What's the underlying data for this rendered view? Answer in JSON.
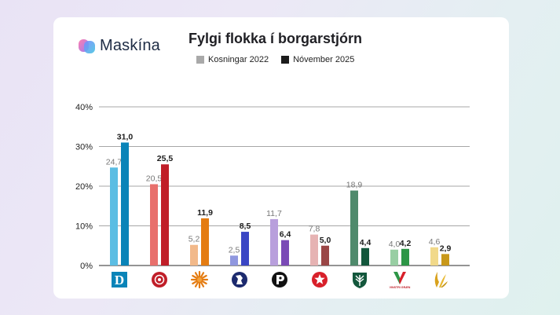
{
  "brand": {
    "name": "Maskína"
  },
  "colors": {
    "y2022": "#a9a9a9",
    "y2025": "#1c1c1c"
  },
  "chart_data": {
    "type": "bar",
    "title": "Fylgi flokka í borgarstjórn",
    "legend": [
      {
        "name": "Kosningar 2022",
        "color": "#a9a9a9"
      },
      {
        "name": "Nóvember 2025",
        "color": "#1c1c1c"
      }
    ],
    "yticks": [
      "0%",
      "10%",
      "20%",
      "30%",
      "40%"
    ],
    "ylim": [
      0,
      40
    ],
    "grid": true,
    "series": [
      {
        "name": "Kosningar 2022",
        "values": [
          24.7,
          20.5,
          5.2,
          2.5,
          11.7,
          7.8,
          18.9,
          4.0,
          4.6
        ],
        "labels": [
          "24,7",
          "20,5",
          "5,2",
          "2,5",
          "11,7",
          "7,8",
          "18,9",
          "4,0",
          "4,6"
        ]
      },
      {
        "name": "Nóvember 2025",
        "values": [
          31.0,
          25.5,
          11.9,
          8.5,
          6.4,
          5.0,
          4.4,
          4.2,
          2.9
        ],
        "labels": [
          "31,0",
          "25,5",
          "11,9",
          "8,5",
          "6,4",
          "5,0",
          "4,4",
          "4,2",
          "2,9"
        ]
      }
    ],
    "parties": [
      {
        "icon": "party-d-icon",
        "logo_text": "D",
        "c22": "#5bbde3",
        "c25": "#0a84b8"
      },
      {
        "icon": "party-rose-icon",
        "c22": "#e8706c",
        "c25": "#c01e28"
      },
      {
        "icon": "party-sun-icon",
        "c22": "#f2b98a",
        "c25": "#e47c12"
      },
      {
        "icon": "party-horse-icon",
        "c22": "#8f97df",
        "c25": "#3a46c4"
      },
      {
        "icon": "party-pirate-icon",
        "c22": "#b89fdc",
        "c25": "#7a4ab6"
      },
      {
        "icon": "party-star-icon",
        "c22": "#e6b3b3",
        "c25": "#9a4646"
      },
      {
        "icon": "party-tree-icon",
        "c22": "#4f8a6c",
        "c25": "#13573c"
      },
      {
        "icon": "party-vg-icon",
        "logo_text": "VINSTRI GRÆN",
        "c22": "#98cea3",
        "c25": "#2d9646"
      },
      {
        "icon": "party-flame-icon",
        "c22": "#f1d98a",
        "c25": "#c8981a"
      }
    ]
  }
}
